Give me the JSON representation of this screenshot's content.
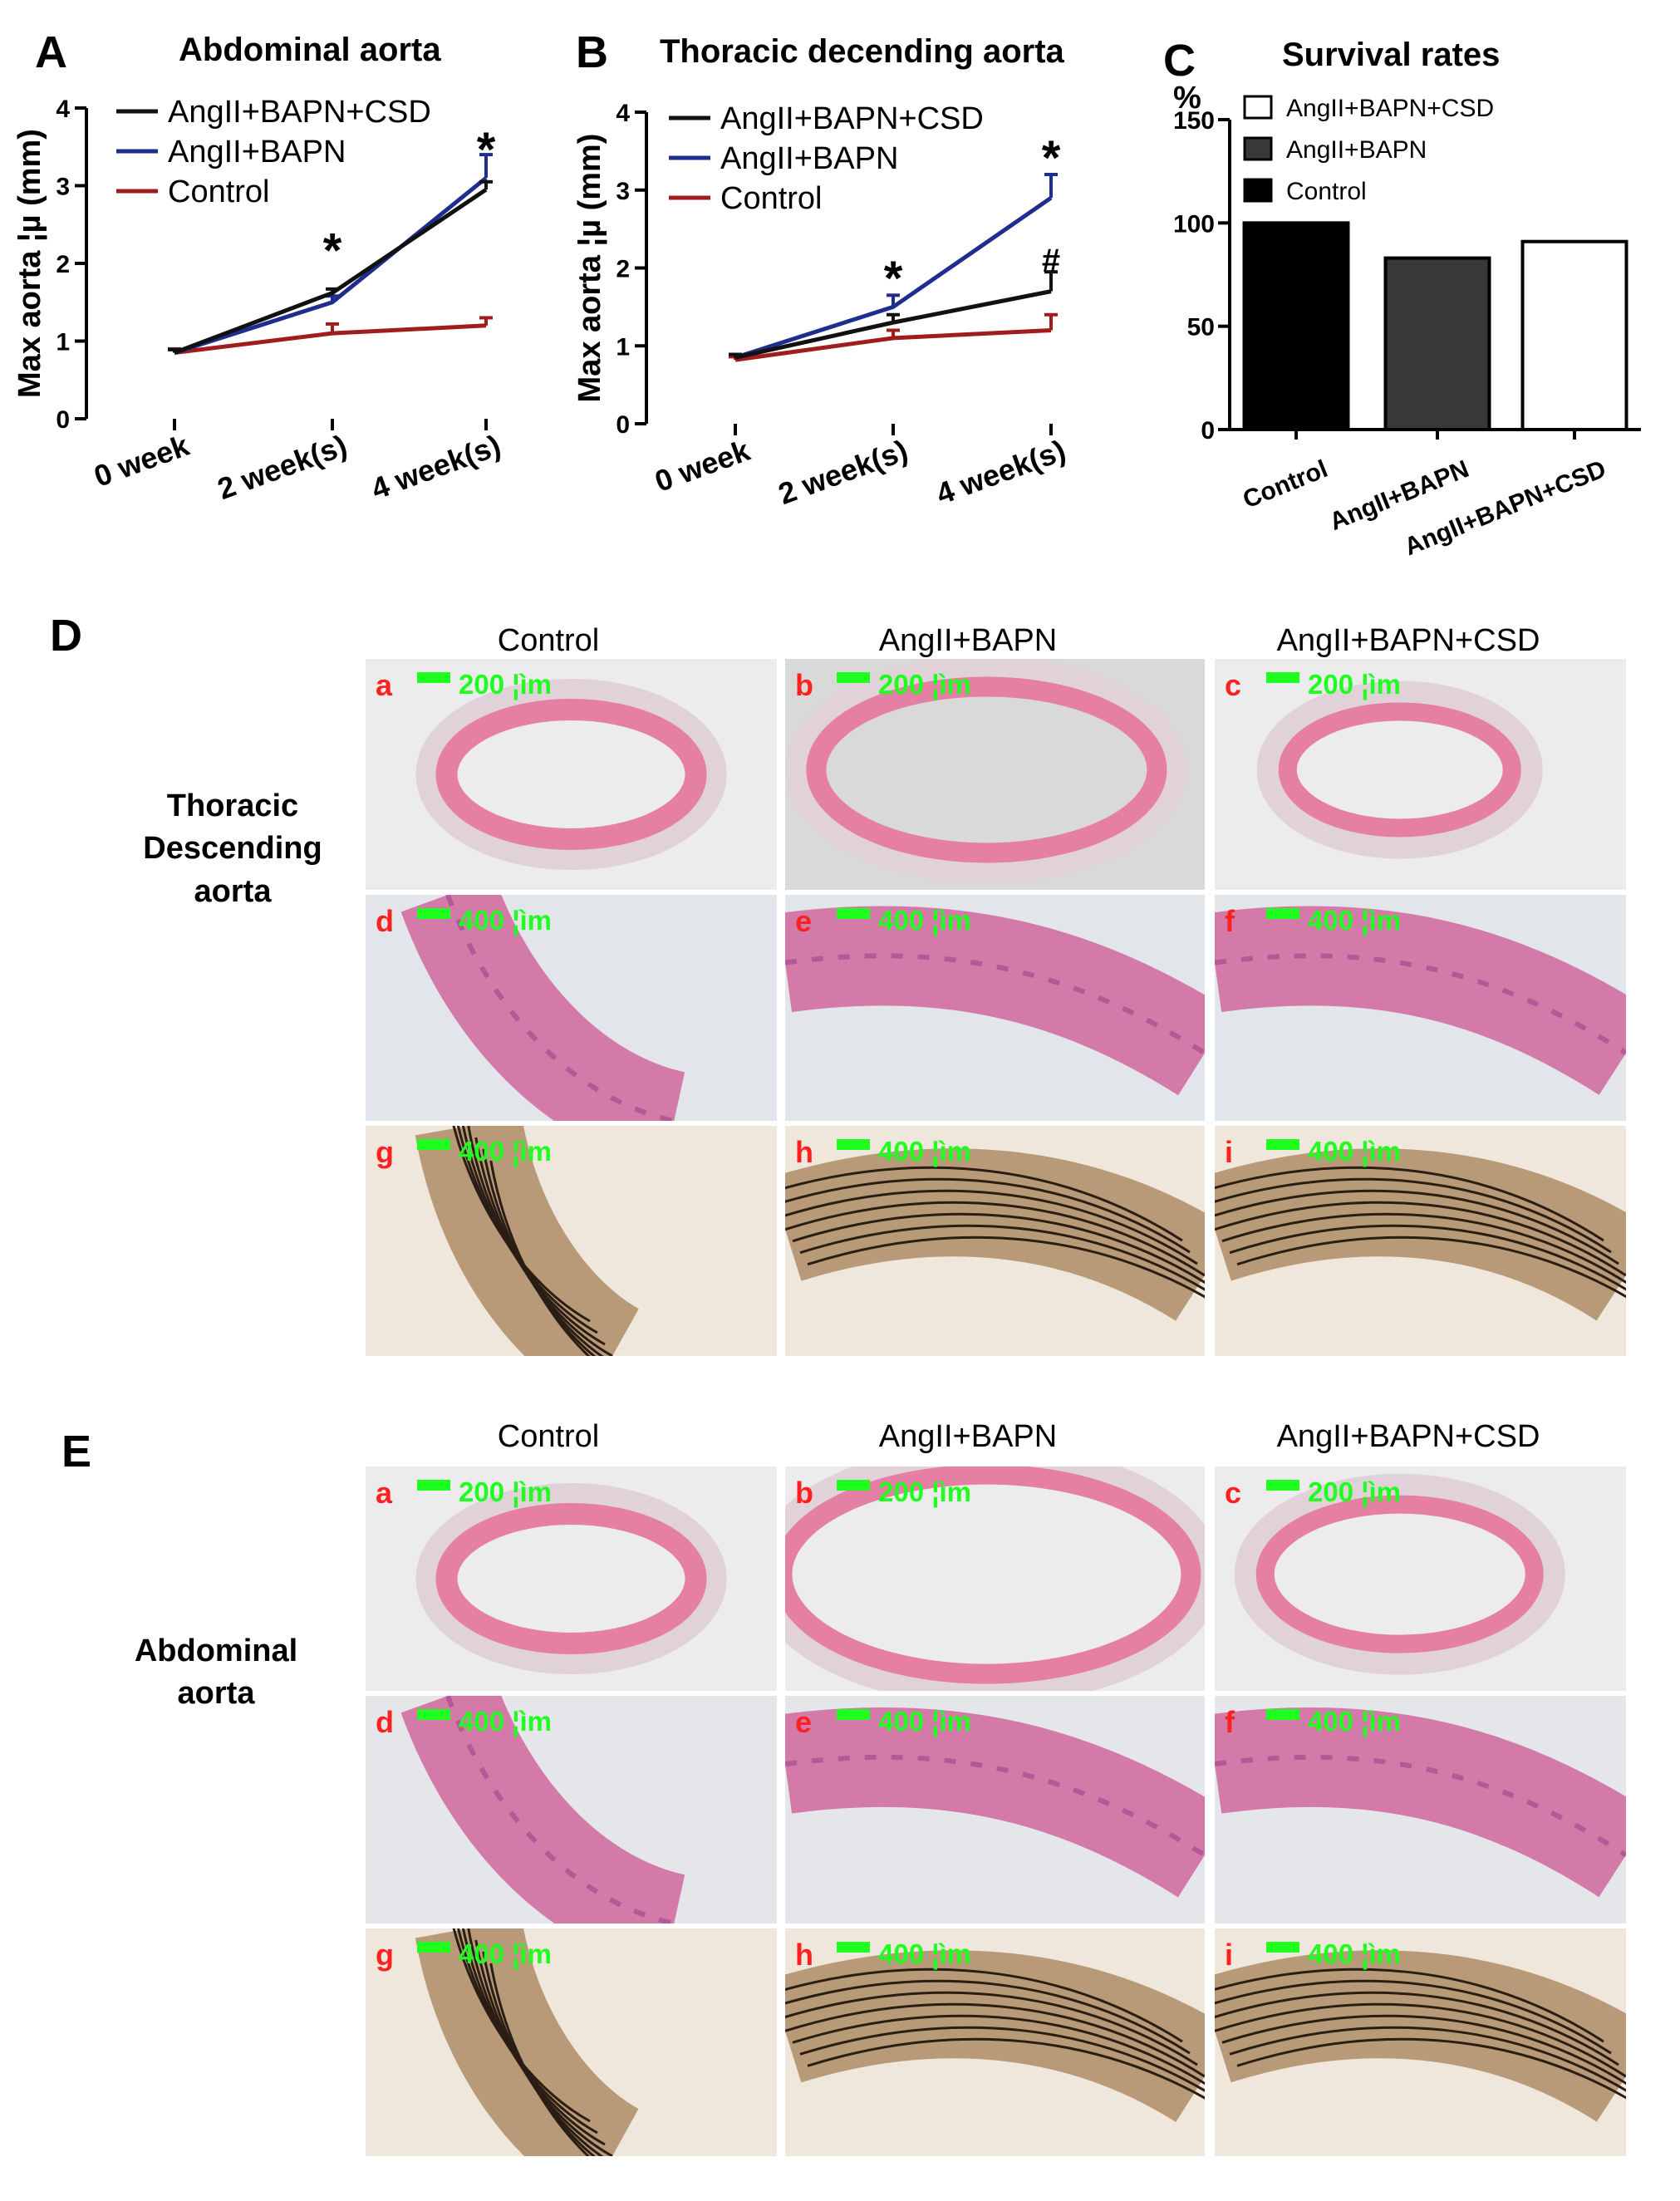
{
  "panels": {
    "A": {
      "letter": "A",
      "title": "Abdominal aorta"
    },
    "B": {
      "letter": "B",
      "title": "Thoracic decending aorta"
    },
    "C": {
      "letter": "C",
      "title": "Survival rates"
    },
    "D": {
      "letter": "D",
      "row_label": [
        "Thoracic",
        "Descending",
        "aorta"
      ]
    },
    "E": {
      "letter": "E",
      "row_label": [
        "Abdominal",
        "aorta"
      ]
    }
  },
  "column_headers": [
    "Control",
    "AngII+BAPN",
    "AngII+BAPN+CSD"
  ],
  "sub_letters": [
    "a",
    "b",
    "c",
    "d",
    "e",
    "f",
    "g",
    "h",
    "i"
  ],
  "scale_labels": {
    "low": "200 ¦ìm",
    "high": "400 ¦ìm"
  },
  "chart_data": [
    {
      "type": "line",
      "title": "Abdominal aorta",
      "ylabel": "Max aorta ¦µ (mm)",
      "xlabel": "",
      "categories": [
        "0 week",
        "2 week(s)",
        "4 week(s)"
      ],
      "ylim": [
        0,
        4
      ],
      "yticks": [
        "0",
        "1",
        "2",
        "3",
        "4"
      ],
      "legend_position": "top-left",
      "series": [
        {
          "name": "AngII+BAPN+CSD",
          "color": "#111111",
          "values": [
            0.85,
            1.62,
            2.95
          ],
          "errors": [
            0.04,
            0.05,
            0.1
          ]
        },
        {
          "name": "AngII+BAPN",
          "color": "#1f2d8f",
          "values": [
            0.85,
            1.5,
            3.1
          ],
          "errors": [
            0.04,
            0.08,
            0.3
          ]
        },
        {
          "name": "Control",
          "color": "#a11d1d",
          "values": [
            0.85,
            1.1,
            1.2
          ],
          "errors": [
            0.05,
            0.12,
            0.1
          ]
        }
      ],
      "annotations": [
        {
          "text": "*",
          "x": "2 week(s)",
          "y": 2.25
        },
        {
          "text": "*",
          "x": "4 week(s)",
          "y": 3.55
        }
      ]
    },
    {
      "type": "line",
      "title": "Thoracic decending aorta",
      "ylabel": "Max aorta ¦µ (mm)",
      "xlabel": "",
      "categories": [
        "0 week",
        "2 week(s)",
        "4 week(s)"
      ],
      "ylim": [
        0,
        4
      ],
      "yticks": [
        "0",
        "1",
        "2",
        "3",
        "4"
      ],
      "legend_position": "top-left",
      "series": [
        {
          "name": "AngII+BAPN+CSD",
          "color": "#111111",
          "values": [
            0.85,
            1.3,
            1.7
          ],
          "errors": [
            0.04,
            0.1,
            0.25
          ]
        },
        {
          "name": "AngII+BAPN",
          "color": "#1f2d8f",
          "values": [
            0.85,
            1.5,
            2.9
          ],
          "errors": [
            0.04,
            0.15,
            0.3
          ]
        },
        {
          "name": "Control",
          "color": "#a11d1d",
          "values": [
            0.82,
            1.1,
            1.2
          ],
          "errors": [
            0.04,
            0.1,
            0.2
          ]
        }
      ],
      "annotations": [
        {
          "text": "*",
          "x": "2 week(s)",
          "y": 1.95
        },
        {
          "text": "*",
          "x": "4 week(s)",
          "y": 3.5
        },
        {
          "text": "#",
          "x": "4 week(s)",
          "y": 2.1
        }
      ]
    },
    {
      "type": "bar",
      "title": "Survival rates",
      "ylabel": "%",
      "xlabel": "",
      "categories": [
        "Control",
        "AngII+BAPN",
        "AngII+BAPN+CSD"
      ],
      "values": [
        100,
        83,
        91
      ],
      "colors": [
        "#000000",
        "#383838",
        "#ffffff"
      ],
      "ylim": [
        0,
        150
      ],
      "yticks": [
        "0",
        "50",
        "100",
        "150"
      ],
      "legend_position": "top-left",
      "legend": [
        "AngII+BAPN+CSD",
        "AngII+BAPN",
        "Control"
      ]
    }
  ]
}
